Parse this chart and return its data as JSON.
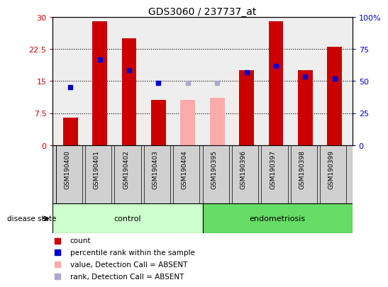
{
  "title": "GDS3060 / 237737_at",
  "samples": [
    "GSM190400",
    "GSM190401",
    "GSM190402",
    "GSM190403",
    "GSM190404",
    "GSM190395",
    "GSM190396",
    "GSM190397",
    "GSM190398",
    "GSM190399"
  ],
  "count_values": [
    6.5,
    29.0,
    25.0,
    10.5,
    null,
    null,
    17.5,
    29.0,
    17.5,
    23.0
  ],
  "count_absent": [
    null,
    null,
    null,
    null,
    10.5,
    11.0,
    null,
    null,
    null,
    null
  ],
  "percentile_values": [
    13.5,
    20.0,
    17.5,
    14.5,
    null,
    null,
    17.0,
    18.5,
    16.0,
    15.5
  ],
  "percentile_absent": [
    null,
    null,
    null,
    null,
    14.5,
    14.5,
    null,
    null,
    null,
    null
  ],
  "ylim_left": [
    0,
    30
  ],
  "ylim_right": [
    0,
    100
  ],
  "yticks_left": [
    0,
    7.5,
    15,
    22.5,
    30
  ],
  "yticks_right": [
    0,
    25,
    50,
    75,
    100
  ],
  "ytick_labels_left": [
    "0",
    "7.5",
    "15",
    "22.5",
    "30"
  ],
  "ytick_labels_right": [
    "0",
    "25",
    "50",
    "75",
    "100%"
  ],
  "bar_width": 0.5,
  "count_color": "#cc0000",
  "count_absent_color": "#ffaaaa",
  "percentile_color": "#0000cc",
  "percentile_absent_color": "#aaaacc",
  "control_bg": "#ccffcc",
  "endometriosis_bg": "#66dd66",
  "label_bg": "#d0d0d0",
  "legend_items": [
    {
      "label": "count",
      "color": "#cc0000"
    },
    {
      "label": "percentile rank within the sample",
      "color": "#0000cc"
    },
    {
      "label": "value, Detection Call = ABSENT",
      "color": "#ffaaaa"
    },
    {
      "label": "rank, Detection Call = ABSENT",
      "color": "#aaaacc"
    }
  ]
}
